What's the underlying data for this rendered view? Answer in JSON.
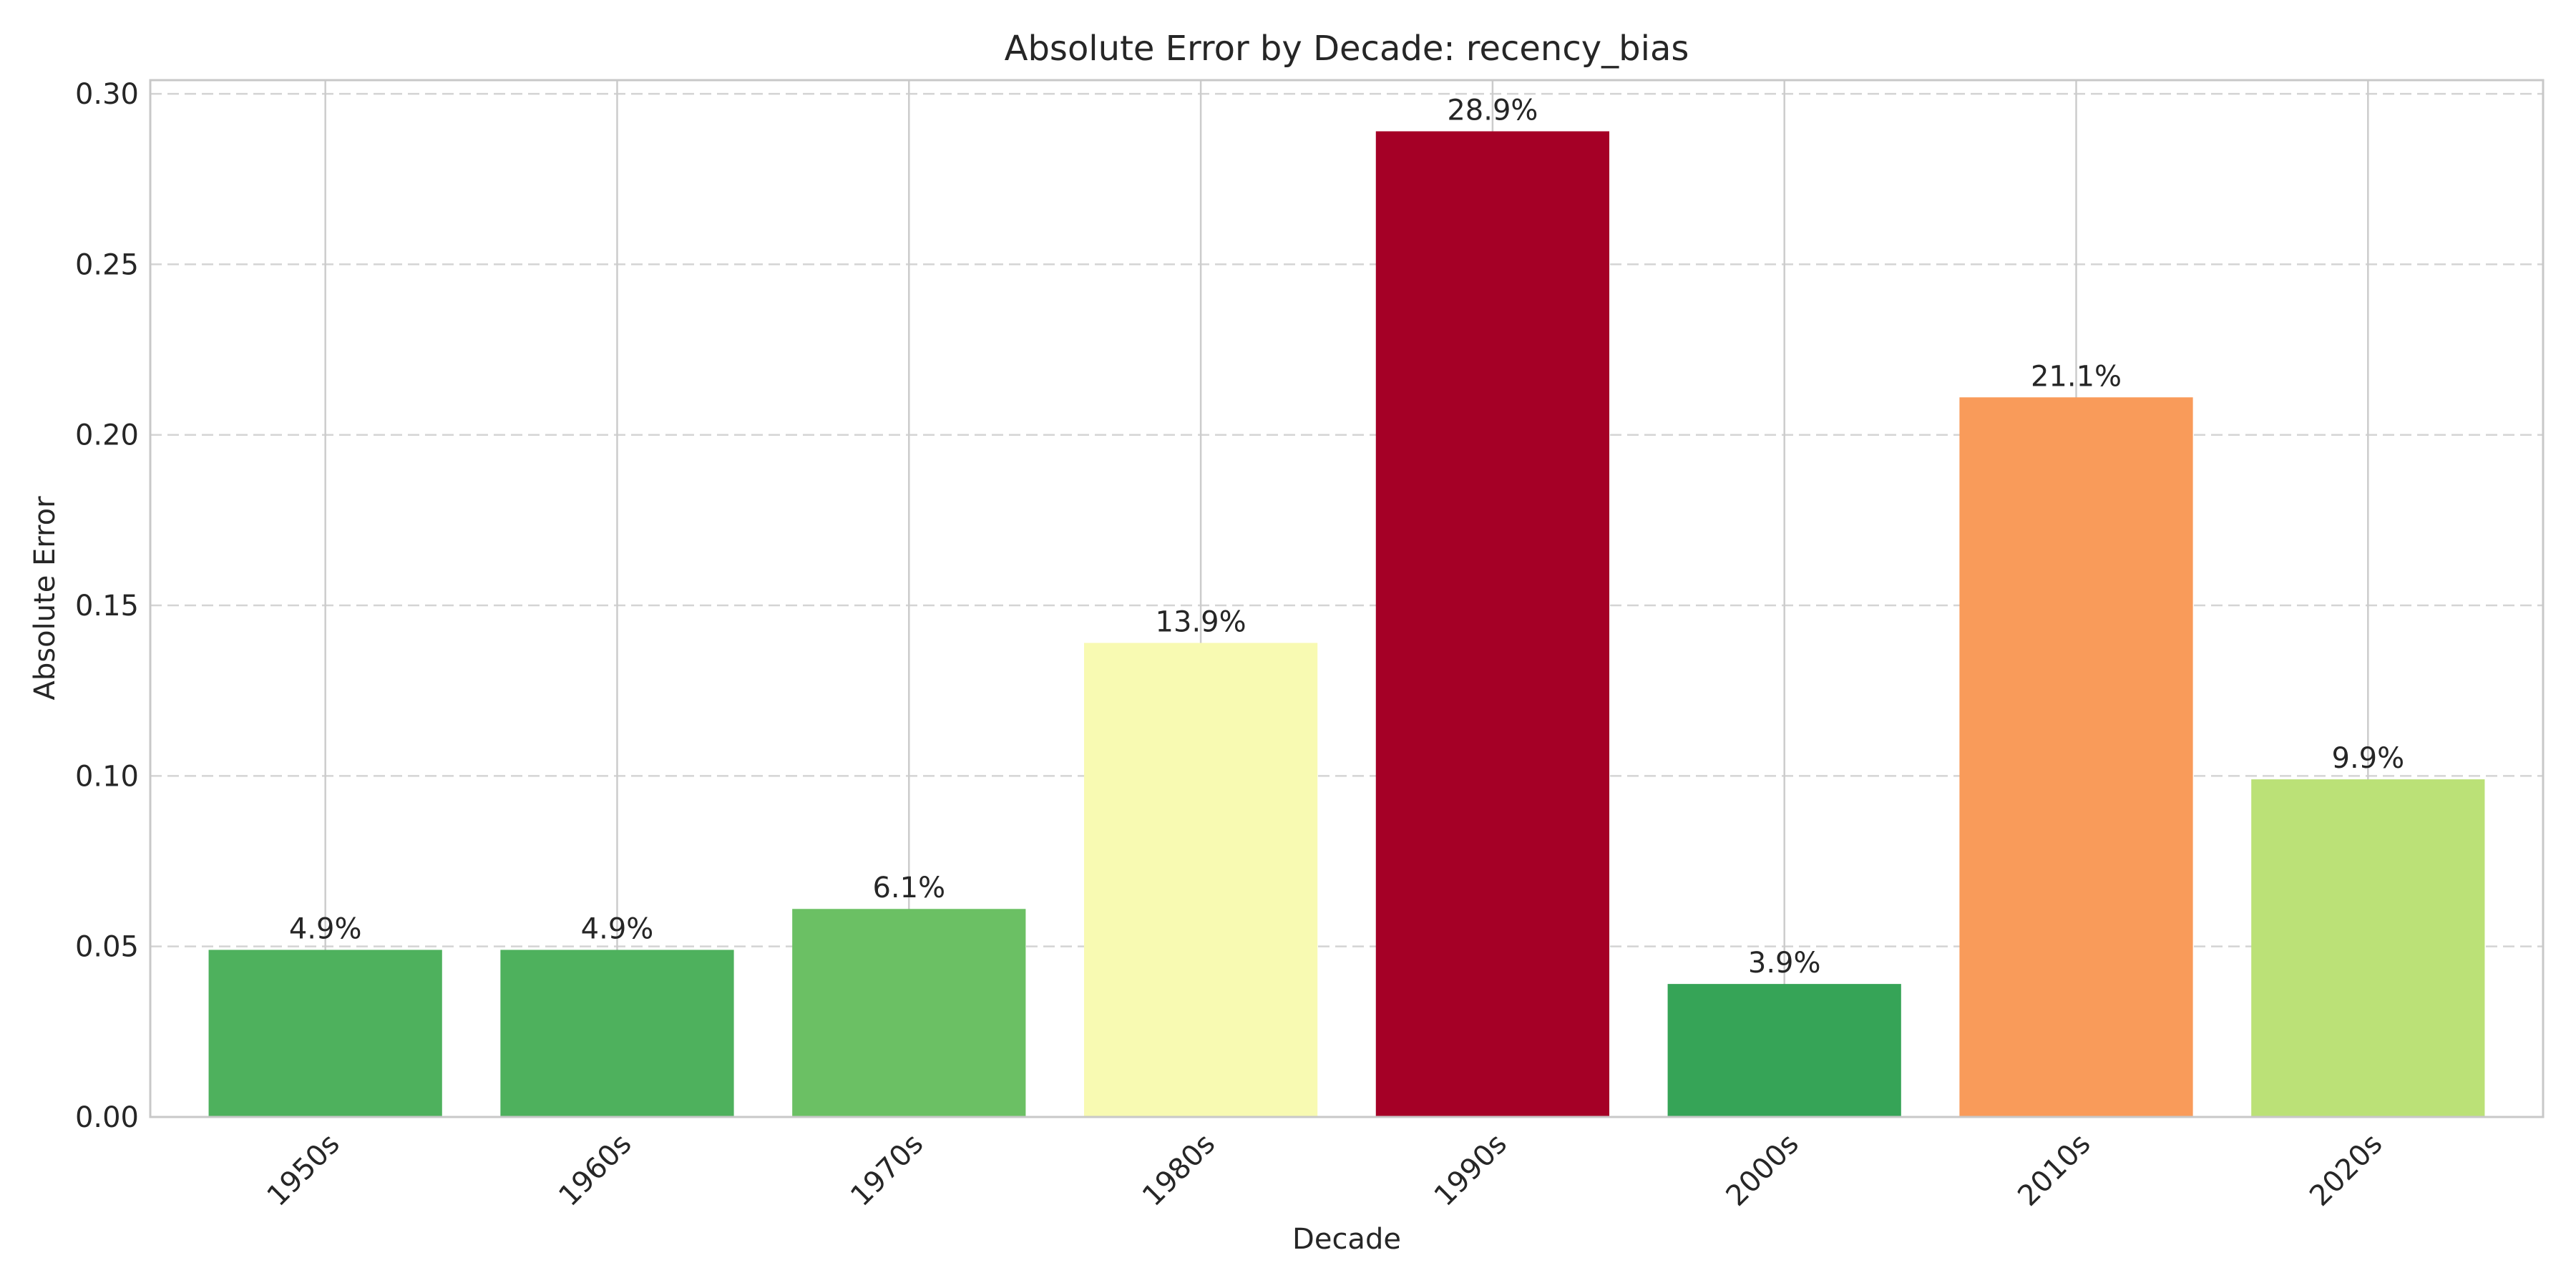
{
  "chart_data": {
    "type": "bar",
    "title": "Absolute Error by Decade: recency_bias",
    "xlabel": "Decade",
    "ylabel": "Absolute Error",
    "categories": [
      "1950s",
      "1960s",
      "1970s",
      "1980s",
      "1990s",
      "2000s",
      "2010s",
      "2020s"
    ],
    "values": [
      0.049,
      0.049,
      0.061,
      0.139,
      0.289,
      0.039,
      0.211,
      0.099
    ],
    "data_labels": [
      "4.9%",
      "4.9%",
      "6.1%",
      "13.9%",
      "28.9%",
      "3.9%",
      "21.1%",
      "9.9%"
    ],
    "colors": [
      "#4eb15d",
      "#4eb15d",
      "#6bc064",
      "#f8fab2",
      "#a50026",
      "#36a457",
      "#f99b5a",
      "#bbe177"
    ],
    "ylim": [
      0,
      0.304
    ],
    "yticks": [
      0.0,
      0.05,
      0.1,
      0.15,
      0.2,
      0.25,
      0.3
    ],
    "ytick_labels": [
      "0.00",
      "0.05",
      "0.10",
      "0.15",
      "0.20",
      "0.25",
      "0.30"
    ],
    "grid": true,
    "legend": "none"
  }
}
